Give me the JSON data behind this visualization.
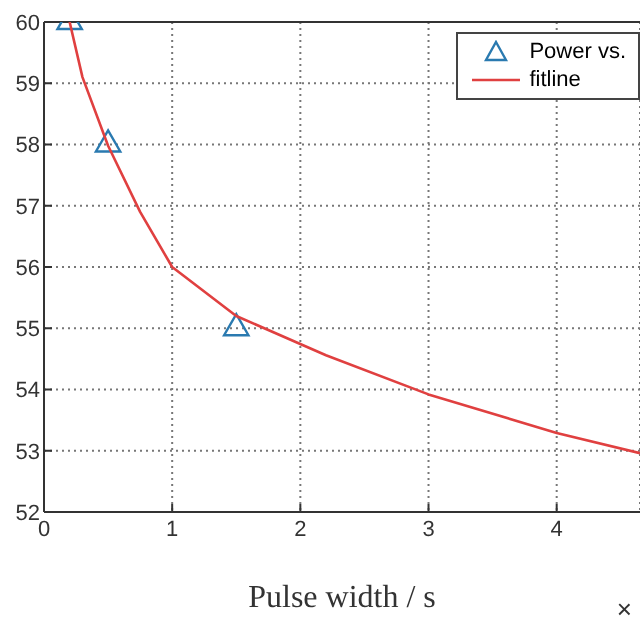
{
  "chart_data": {
    "type": "scatter",
    "xlabel": "Pulse width / s",
    "annotations": [
      "×"
    ],
    "xlim": [
      0,
      4.65
    ],
    "xticks": [
      0,
      1,
      2,
      3,
      4
    ],
    "ylim": [
      52,
      60
    ],
    "yticks": [
      52,
      53,
      54,
      55,
      56,
      57,
      58,
      59,
      60
    ],
    "grid": true,
    "legend": "top right",
    "series": [
      {
        "name": "Power vs.",
        "marker": "triangle",
        "color": "#2a7ab0",
        "x": [
          0.2,
          0.5,
          1.5
        ],
        "values": [
          60,
          58,
          55
        ]
      },
      {
        "name": "fitline",
        "type": "line",
        "marker": "none",
        "color": "#e04040",
        "x": [
          0.2,
          0.3,
          0.5,
          0.75,
          1,
          1.5,
          2.2,
          3,
          4,
          4.65
        ],
        "values": [
          60,
          59.1,
          57.98,
          56.9,
          56.0,
          55.2,
          54.56,
          53.92,
          53.29,
          52.96
        ]
      }
    ]
  }
}
